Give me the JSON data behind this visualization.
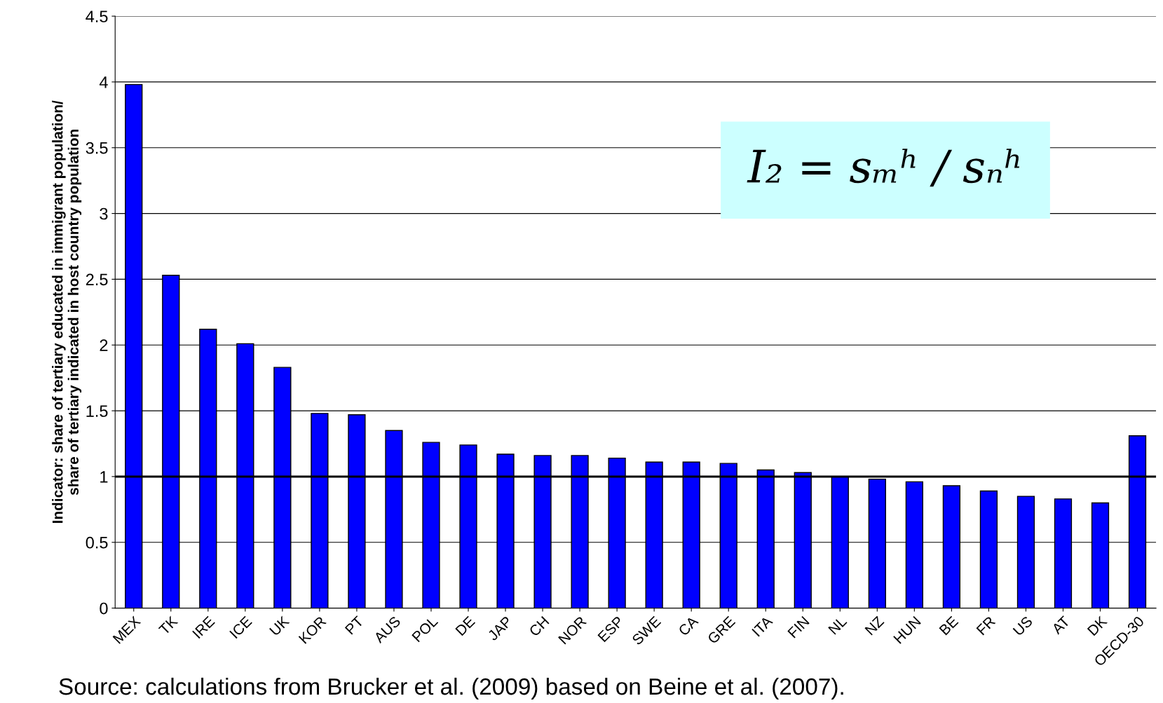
{
  "chart_data": {
    "type": "bar",
    "ylabel": "Indicator: share of tertiary educated in immigrant population/\nshare of tertiary indicated in host country population",
    "categories": [
      "MEX",
      "TK",
      "IRE",
      "ICE",
      "UK",
      "KOR",
      "PT",
      "AUS",
      "POL",
      "DE",
      "JAP",
      "CH",
      "NOR",
      "ESP",
      "SWE",
      "CA",
      "GRE",
      "ITA",
      "FIN",
      "NL",
      "NZ",
      "HUN",
      "BE",
      "FR",
      "US",
      "AT",
      "DK",
      "OECD-30"
    ],
    "values": [
      3.98,
      2.53,
      2.12,
      2.01,
      1.83,
      1.48,
      1.47,
      1.35,
      1.26,
      1.24,
      1.17,
      1.16,
      1.16,
      1.14,
      1.11,
      1.11,
      1.1,
      1.05,
      1.03,
      1.0,
      0.98,
      0.96,
      0.93,
      0.89,
      0.85,
      0.83,
      0.8,
      1.31
    ],
    "color": "#0000ff",
    "ylim": [
      0,
      4.5
    ],
    "yticks": [
      0,
      0.5,
      1,
      1.5,
      2,
      2.5,
      3,
      3.5,
      4,
      4.5
    ],
    "grid": "y",
    "ref_lines": [
      {
        "axis": "y",
        "value": 1,
        "color": "#000000",
        "line_style": "solid"
      }
    ],
    "annotations": [
      "I₂ = sₘʰ / sₙʰ",
      "Source: calculations from Brucker et al. (2009) based on Beine et al. (2007)."
    ]
  }
}
